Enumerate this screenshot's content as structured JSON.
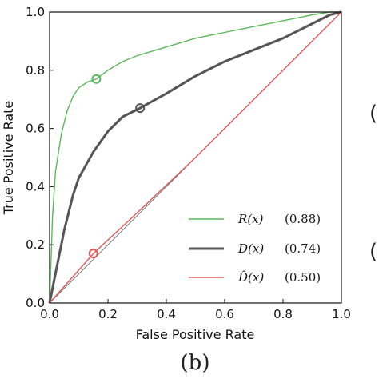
{
  "panel_label": "(b)",
  "edge_glyphs": [
    "(",
    "("
  ],
  "chart_data": {
    "type": "line",
    "xlabel": "False Positive Rate",
    "ylabel": "True Positive Rate",
    "xlim": [
      0,
      1
    ],
    "ylim": [
      0,
      1
    ],
    "x_ticks": [
      "0.0",
      "0.2",
      "0.4",
      "0.6",
      "0.8",
      "1.0"
    ],
    "y_ticks": [
      "0.0",
      "0.2",
      "0.4",
      "0.6",
      "0.8",
      "1.0"
    ],
    "grid": false,
    "legend_placement": "bottom-right",
    "series": [
      {
        "name": "R(x) (0.88)",
        "color": "#5cb85c",
        "x": [
          0,
          0.01,
          0.02,
          0.04,
          0.06,
          0.08,
          0.1,
          0.13,
          0.16,
          0.2,
          0.25,
          0.3,
          0.4,
          0.5,
          0.6,
          0.7,
          0.8,
          0.9,
          0.96,
          1.0
        ],
        "y": [
          0,
          0.3,
          0.45,
          0.58,
          0.66,
          0.71,
          0.74,
          0.76,
          0.77,
          0.8,
          0.83,
          0.85,
          0.88,
          0.91,
          0.93,
          0.95,
          0.97,
          0.99,
          1.0,
          1.0
        ],
        "marker": {
          "x": 0.16,
          "y": 0.77
        }
      },
      {
        "name": "D(x) (0.74)",
        "color": "#555555",
        "x": [
          0,
          0.02,
          0.05,
          0.08,
          0.1,
          0.15,
          0.2,
          0.25,
          0.31,
          0.4,
          0.5,
          0.6,
          0.7,
          0.8,
          0.9,
          0.96,
          1.0
        ],
        "y": [
          0,
          0.1,
          0.25,
          0.37,
          0.43,
          0.52,
          0.59,
          0.64,
          0.67,
          0.72,
          0.78,
          0.83,
          0.87,
          0.91,
          0.96,
          0.99,
          1.0
        ],
        "marker": {
          "x": 0.31,
          "y": 0.67
        }
      },
      {
        "name": "D̂(x) (0.50)",
        "color": "#e05a5a",
        "x": [
          0,
          0.15,
          0.3,
          0.5,
          0.7,
          0.85,
          1.0
        ],
        "y": [
          0,
          0.17,
          0.31,
          0.5,
          0.7,
          0.85,
          1.0
        ],
        "marker": {
          "x": 0.15,
          "y": 0.17
        }
      }
    ],
    "legend": [
      {
        "label_main": "R(x)",
        "label_auc": "(0.88)",
        "color": "#5cb85c"
      },
      {
        "label_main": "D(x)",
        "label_auc": "(0.74)",
        "color": "#555555"
      },
      {
        "label_main": "D̂(x)",
        "label_auc": "(0.50)",
        "color": "#e05a5a"
      }
    ]
  }
}
